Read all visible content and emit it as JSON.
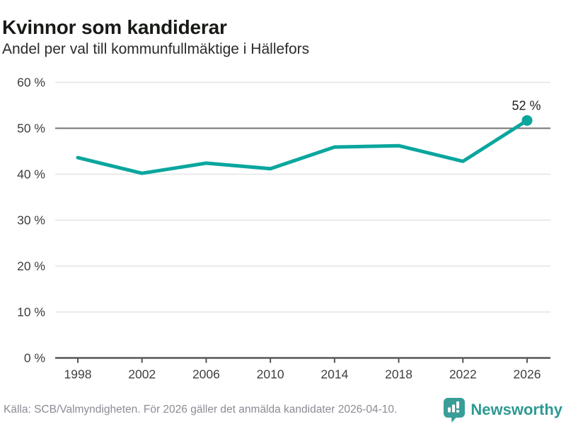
{
  "header": {
    "title": "Kvinnor som kandiderar",
    "subtitle": "Andel per val till kommunfullmäktige i Hällefors"
  },
  "chart_data": {
    "type": "line",
    "title": "Kvinnor som kandiderar",
    "subtitle": "Andel per val till kommunfullmäktige i Hällefors",
    "categories": [
      "1998",
      "2002",
      "2006",
      "2010",
      "2014",
      "2018",
      "2022",
      "2026"
    ],
    "values": [
      43.6,
      40.2,
      42.4,
      41.2,
      45.9,
      46.2,
      42.8,
      51.7
    ],
    "last_point_label": "52 %",
    "yticks": [
      0,
      10,
      20,
      30,
      40,
      50,
      60
    ],
    "ytick_suffix": " %",
    "ylim": [
      0,
      60
    ],
    "grid": true,
    "emphasized_gridline": 50,
    "legend": "none",
    "xlabel": "",
    "ylabel": "",
    "line_color": "#0aa69e",
    "marker_color": "#0aa69e"
  },
  "footer": {
    "source": "Källa: SCB/Valmyndigheten. För 2026 gäller det anmälda kandidater 2026-04-10.",
    "brand": "Newsworthy"
  },
  "colors": {
    "accent_teal": "#0aa69e",
    "brand_teal": "#2f9a93",
    "logo_teal": "#3a9e98",
    "grid_light": "#e3e3e3",
    "grid_emphasis": "#737373",
    "axis": "#55565a",
    "tick_label": "#3f3f3f",
    "point_label": "#1d1d1d",
    "source_gray": "#8b8c95"
  }
}
